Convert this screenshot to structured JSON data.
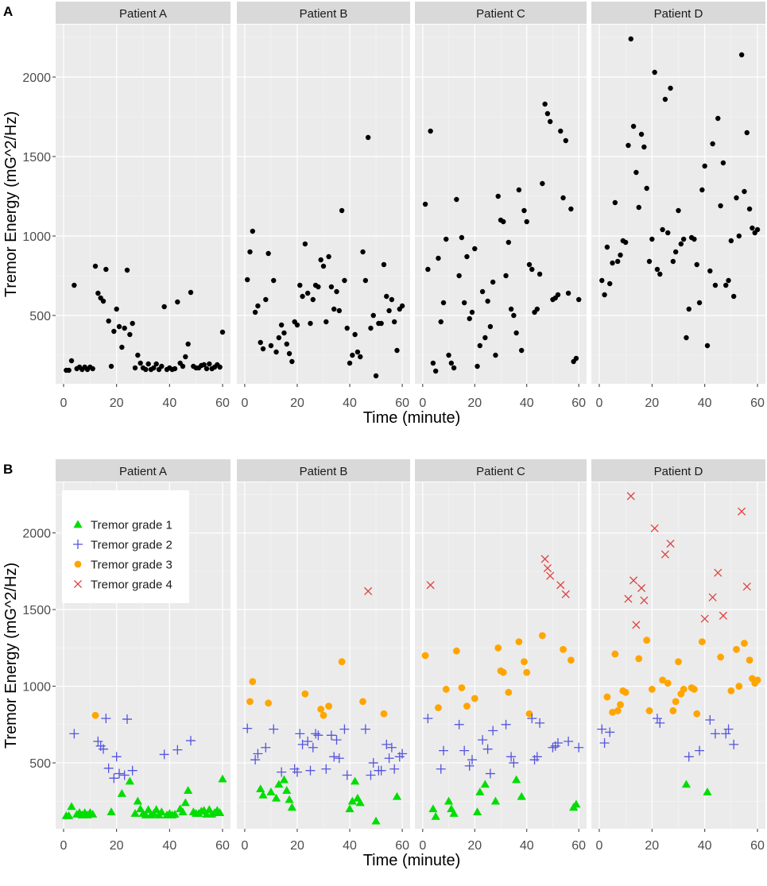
{
  "panels": [
    {
      "label": "A",
      "ylabel": "Tremor Energy (mG^2/Hz)",
      "xlabel": "Time (minute)",
      "xlim": [
        -3,
        63
      ],
      "ylim": [
        70,
        2330
      ],
      "xticks": [
        0,
        20,
        40,
        60
      ],
      "yticks": [
        500,
        1000,
        1500,
        2000
      ],
      "colored": false
    },
    {
      "label": "B",
      "ylabel": "Tremor Energy (mG^2/Hz)",
      "xlabel": "Time (minute)",
      "xlim": [
        -3,
        63
      ],
      "ylim": [
        70,
        2330
      ],
      "xticks": [
        0,
        20,
        40,
        60
      ],
      "yticks": [
        500,
        1000,
        1500,
        2000
      ],
      "colored": true
    }
  ],
  "legend": {
    "entries": [
      {
        "label": "Tremor grade 1",
        "shape": "triangle",
        "color": "#00dd00"
      },
      {
        "label": "Tremor grade 2",
        "shape": "plus",
        "color": "#5555dd"
      },
      {
        "label": "Tremor grade 3",
        "shape": "circle",
        "color": "#ffa500"
      },
      {
        "label": "Tremor grade 4",
        "shape": "cross",
        "color": "#e04040"
      }
    ]
  },
  "chart_data": {
    "type": "scatter",
    "facet_titles": [
      "Patient A",
      "Patient B",
      "Patient C",
      "Patient D"
    ],
    "xlabel": "Time (minute)",
    "ylabel": "Tremor Energy (mG^2/Hz)",
    "xlim": [
      -3,
      63
    ],
    "ylim": [
      70,
      2330
    ],
    "grade_thresholds": [
      400,
      800,
      1400
    ],
    "series": [
      {
        "name": "Patient A",
        "x": [
          1,
          2,
          3,
          4,
          5,
          6,
          7,
          8,
          9,
          10,
          11,
          12,
          13,
          14,
          15,
          16,
          17,
          18,
          19,
          20,
          21,
          22,
          23,
          24,
          25,
          26,
          27,
          28,
          29,
          30,
          31,
          32,
          33,
          34,
          35,
          36,
          37,
          38,
          39,
          40,
          41,
          42,
          43,
          44,
          45,
          46,
          47,
          48,
          49,
          50,
          51,
          52,
          53,
          54,
          55,
          56,
          57,
          58,
          59,
          60
        ],
        "y": [
          155,
          155,
          215,
          690,
          165,
          175,
          160,
          175,
          160,
          175,
          165,
          810,
          640,
          610,
          590,
          790,
          465,
          180,
          400,
          540,
          430,
          300,
          420,
          785,
          380,
          450,
          170,
          250,
          200,
          170,
          160,
          195,
          160,
          170,
          195,
          160,
          180,
          555,
          160,
          170,
          160,
          165,
          585,
          200,
          180,
          240,
          320,
          645,
          180,
          170,
          170,
          185,
          190,
          165,
          195,
          165,
          175,
          190,
          175,
          395
        ]
      },
      {
        "name": "Patient B",
        "x": [
          1,
          2,
          3,
          4,
          5,
          6,
          7,
          8,
          9,
          10,
          11,
          12,
          13,
          14,
          15,
          16,
          17,
          18,
          19,
          20,
          21,
          22,
          23,
          24,
          25,
          26,
          27,
          28,
          29,
          30,
          31,
          32,
          33,
          34,
          35,
          36,
          37,
          38,
          39,
          40,
          41,
          42,
          43,
          44,
          45,
          46,
          47,
          48,
          49,
          50,
          51,
          52,
          53,
          54,
          55,
          56,
          57,
          58,
          59,
          60
        ],
        "y": [
          725,
          900,
          1030,
          520,
          560,
          330,
          290,
          600,
          890,
          310,
          720,
          270,
          360,
          440,
          390,
          320,
          260,
          210,
          460,
          440,
          690,
          620,
          950,
          640,
          450,
          600,
          690,
          680,
          850,
          810,
          460,
          870,
          680,
          540,
          650,
          530,
          1160,
          720,
          420,
          200,
          250,
          380,
          270,
          240,
          900,
          720,
          1620,
          420,
          500,
          120,
          450,
          450,
          820,
          620,
          530,
          600,
          460,
          280,
          540,
          560
        ]
      },
      {
        "name": "Patient C",
        "x": [
          1,
          2,
          3,
          4,
          5,
          6,
          7,
          8,
          9,
          10,
          11,
          12,
          13,
          14,
          15,
          16,
          17,
          18,
          19,
          20,
          21,
          22,
          23,
          24,
          25,
          26,
          27,
          28,
          29,
          30,
          31,
          32,
          33,
          34,
          35,
          36,
          37,
          38,
          39,
          40,
          41,
          42,
          43,
          44,
          45,
          46,
          47,
          48,
          49,
          50,
          51,
          52,
          53,
          54,
          55,
          56,
          57,
          58,
          59,
          60
        ],
        "y": [
          1200,
          790,
          1660,
          200,
          150,
          860,
          460,
          580,
          980,
          250,
          200,
          170,
          1230,
          750,
          990,
          580,
          870,
          480,
          520,
          920,
          180,
          310,
          650,
          360,
          590,
          430,
          710,
          250,
          1250,
          1100,
          1090,
          750,
          960,
          540,
          500,
          390,
          1290,
          280,
          1160,
          1090,
          820,
          790,
          520,
          540,
          760,
          1330,
          1830,
          1770,
          1720,
          600,
          610,
          630,
          1660,
          1240,
          1600,
          640,
          1170,
          210,
          230,
          600
        ]
      },
      {
        "name": "Patient D",
        "x": [
          1,
          2,
          3,
          4,
          5,
          6,
          7,
          8,
          9,
          10,
          11,
          12,
          13,
          14,
          15,
          16,
          17,
          18,
          19,
          20,
          21,
          22,
          23,
          24,
          25,
          26,
          27,
          28,
          29,
          30,
          31,
          32,
          33,
          34,
          35,
          36,
          37,
          38,
          39,
          40,
          41,
          42,
          43,
          44,
          45,
          46,
          47,
          48,
          49,
          50,
          51,
          52,
          53,
          54,
          55,
          56,
          57,
          58,
          59,
          60
        ],
        "y": [
          720,
          630,
          930,
          700,
          830,
          1210,
          840,
          880,
          970,
          960,
          1570,
          2240,
          1690,
          1400,
          1180,
          1640,
          1560,
          1300,
          840,
          980,
          2030,
          790,
          760,
          1040,
          1860,
          1020,
          1930,
          840,
          900,
          1160,
          950,
          980,
          360,
          540,
          990,
          980,
          820,
          580,
          1290,
          1440,
          310,
          780,
          1580,
          690,
          1740,
          1190,
          1460,
          690,
          720,
          970,
          620,
          1240,
          1000,
          2140,
          1280,
          1650,
          1170,
          1050,
          1020,
          1040
        ]
      }
    ]
  }
}
